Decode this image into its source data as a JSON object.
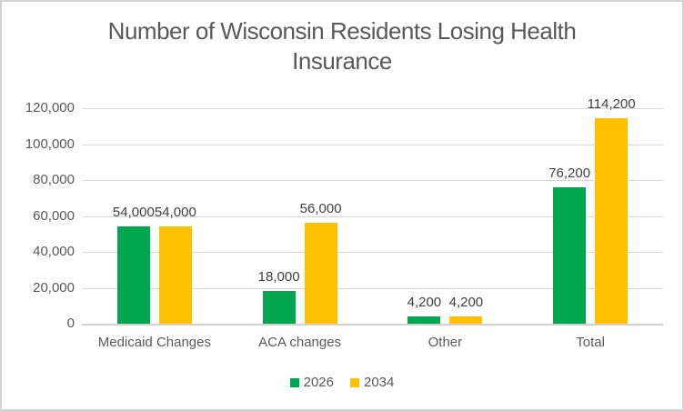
{
  "header": {
    "title_lines": [
      "Number of Wisconsin Residents Losing Health",
      "Insurance"
    ]
  },
  "chart_data": {
    "type": "bar",
    "title": "Number of Wisconsin Residents Losing Health Insurance",
    "categories": [
      "Medicaid Changes",
      "ACA changes",
      "Other",
      "Total"
    ],
    "series": [
      {
        "name": "2026",
        "color": "#00A650",
        "values": [
          54000,
          18000,
          4200,
          76200
        ],
        "labels": [
          "54,000",
          "18,000",
          "4,200",
          "76,200"
        ]
      },
      {
        "name": "2034",
        "color": "#FFC000",
        "values": [
          54000,
          56000,
          4200,
          114200
        ],
        "labels": [
          "54,000",
          "56,000",
          "4,200",
          "114,200"
        ]
      }
    ],
    "xlabel": "",
    "ylabel": "",
    "ylim": [
      0,
      120000
    ],
    "ytick_step": 20000,
    "yticks": [
      "0",
      "20,000",
      "40,000",
      "60,000",
      "80,000",
      "100,000",
      "120,000"
    ],
    "grid": true,
    "legend_position": "bottom",
    "colors": {
      "gridline": "#D9D9D9",
      "axis_line": "#D1D1D1",
      "title_text": "#595959",
      "axis_text": "#595959",
      "data_label_text": "#404040",
      "frame_border": "#D2D2D2"
    }
  }
}
